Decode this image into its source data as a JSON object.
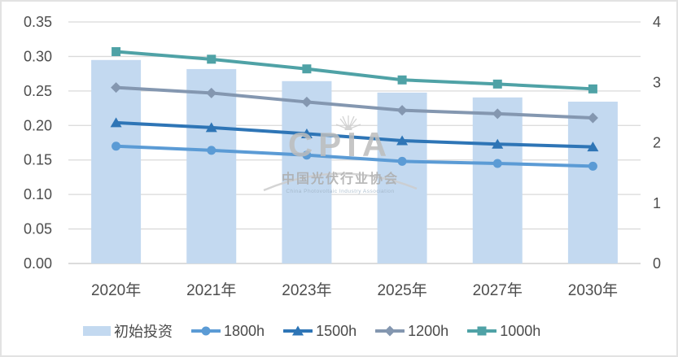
{
  "frame": {
    "background": "#ffffff",
    "border_color": "#e2e2e2"
  },
  "text_color": "#4d4d4d",
  "chart_data": {
    "type": "combo",
    "title": "",
    "categories": [
      "2020年",
      "2021年",
      "2023年",
      "2025年",
      "2027年",
      "2030年"
    ],
    "bar_series": {
      "name": "初始投资",
      "axis": "right",
      "color": "#C3D9F0",
      "values": [
        3.37,
        3.22,
        3.02,
        2.83,
        2.75,
        2.68
      ]
    },
    "line_series": [
      {
        "name": "1800h",
        "axis": "left",
        "color": "#5B9BD5",
        "marker": "circle",
        "values": [
          0.17,
          0.164,
          0.157,
          0.148,
          0.145,
          0.141
        ]
      },
      {
        "name": "1500h",
        "axis": "left",
        "color": "#2E75B6",
        "marker": "triangle",
        "values": [
          0.204,
          0.197,
          0.188,
          0.178,
          0.173,
          0.169
        ]
      },
      {
        "name": "1200h",
        "axis": "left",
        "color": "#8497B0",
        "marker": "diamond",
        "values": [
          0.255,
          0.247,
          0.234,
          0.222,
          0.217,
          0.211
        ]
      },
      {
        "name": "1000h",
        "axis": "left",
        "color": "#4FA2A6",
        "marker": "square",
        "values": [
          0.307,
          0.296,
          0.282,
          0.266,
          0.26,
          0.253
        ]
      }
    ],
    "left_axis": {
      "min": 0,
      "max": 0.35,
      "step": 0.05,
      "decimals": 2
    },
    "right_axis": {
      "min": 0,
      "max": 4,
      "step": 1,
      "decimals": 0
    },
    "grid": true,
    "gridline_color": "#dadada",
    "baseline_color": "#c8c8c8",
    "legend_position": "bottom"
  },
  "watermark": {
    "acronym": "CPIA",
    "cn": "中国光伏行业协会",
    "en": "China Photovoltaic Industry Association"
  }
}
